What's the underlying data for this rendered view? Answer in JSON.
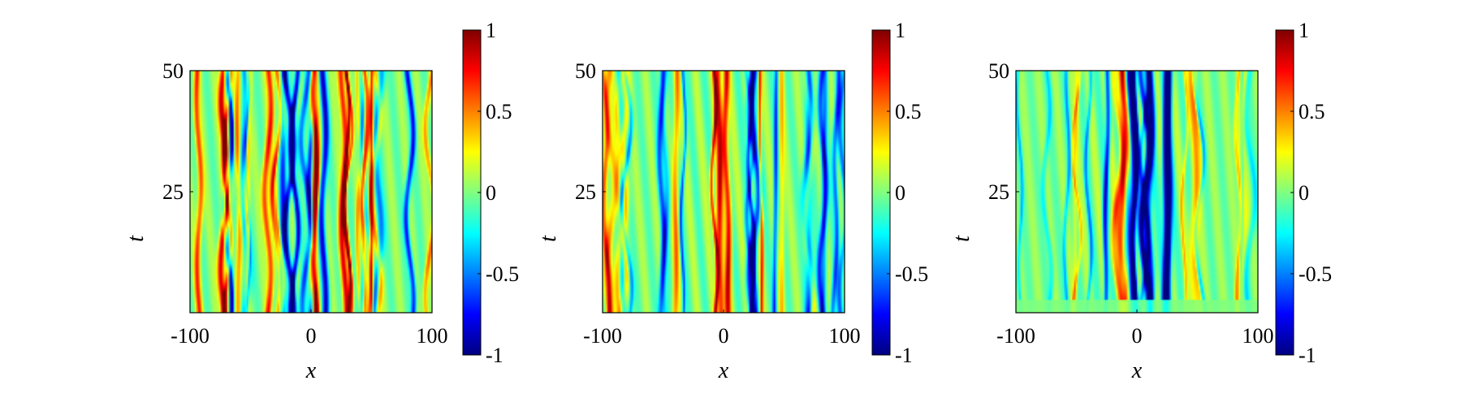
{
  "chart_data": [
    {
      "type": "heatmap",
      "panel": "left",
      "xlabel": "x",
      "ylabel": "t",
      "xlim": [
        -100,
        100
      ],
      "ylim": [
        0,
        50
      ],
      "xticks": [
        -100,
        0,
        100
      ],
      "xtick_labels": [
        "-100",
        "0",
        "100"
      ],
      "yticks": [
        25,
        50
      ],
      "ytick_labels": [
        "25",
        "50"
      ],
      "colorbar": {
        "range": [
          -1,
          1
        ],
        "ticks": [
          1,
          0.5,
          0,
          -0.5,
          -1
        ],
        "tick_labels": [
          "1",
          "0.5",
          "0",
          "-0.5",
          "-1"
        ],
        "colormap": "jet"
      },
      "pattern": {
        "n_stripes": 32,
        "max_amplitude": 0.95,
        "drift_rate": 0.25,
        "seed": 11,
        "quiet_fraction": 0.0,
        "center_weight": 0.0,
        "background": 0.1
      }
    },
    {
      "type": "heatmap",
      "panel": "middle",
      "xlabel": "x",
      "ylabel": "t",
      "xlim": [
        -100,
        100
      ],
      "ylim": [
        0,
        50
      ],
      "xticks": [
        -100,
        0,
        100
      ],
      "xtick_labels": [
        "-100",
        "0",
        "100"
      ],
      "yticks": [
        25,
        50
      ],
      "ytick_labels": [
        "25",
        "50"
      ],
      "colorbar": {
        "range": [
          -1,
          1
        ],
        "ticks": [
          1,
          0.5,
          0,
          -0.5,
          -1
        ],
        "tick_labels": [
          "1",
          "0.5",
          "0",
          "-0.5",
          "-1"
        ],
        "colormap": "jet"
      },
      "pattern": {
        "n_stripes": 26,
        "max_amplitude": 0.85,
        "drift_rate": 0.5,
        "seed": 23,
        "quiet_fraction": 0.0,
        "center_weight": 0.3,
        "background": 0.15
      }
    },
    {
      "type": "heatmap",
      "panel": "right",
      "xlabel": "x",
      "ylabel": "t",
      "xlim": [
        -100,
        100
      ],
      "ylim": [
        0,
        50
      ],
      "xticks": [
        -100,
        0,
        100
      ],
      "xtick_labels": [
        "-100",
        "0",
        "100"
      ],
      "yticks": [
        25,
        50
      ],
      "ytick_labels": [
        "25",
        "50"
      ],
      "colorbar": {
        "range": [
          -1,
          1
        ],
        "ticks": [
          1,
          0.5,
          0,
          -0.5,
          -1
        ],
        "tick_labels": [
          "1",
          "0.5",
          "0",
          "-0.5",
          "-1"
        ],
        "colormap": "jet"
      },
      "pattern": {
        "n_stripes": 26,
        "max_amplitude": 1.0,
        "drift_rate": 0.4,
        "seed": 37,
        "quiet_fraction": 0.05,
        "center_weight": 0.6,
        "background": 0.2
      }
    }
  ]
}
